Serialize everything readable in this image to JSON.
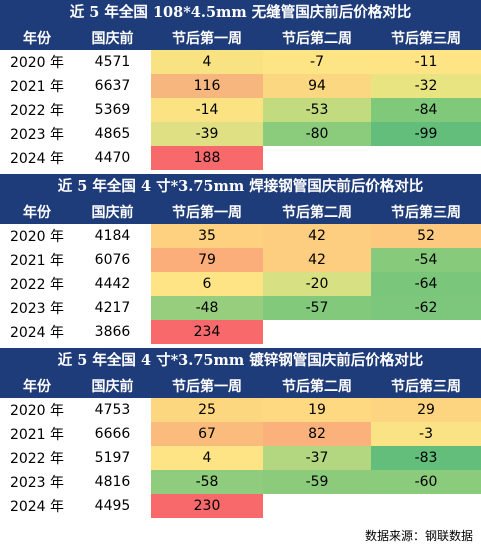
{
  "tables": [
    {
      "title": "近 5 年全国 108*4.5mm 无缝管国庆前后价格对比",
      "headers": [
        "年份",
        "国庆前",
        "节后第一周",
        "节后第二周",
        "节后第三周"
      ],
      "rows": [
        {
          "year": "2020 年",
          "before": "4571",
          "w1": "4",
          "w2": "-7",
          "w3": "-11",
          "colors": [
            "#f9e282",
            "#fde484",
            "#fee485"
          ]
        },
        {
          "year": "2021 年",
          "before": "6637",
          "w1": "116",
          "w2": "94",
          "w3": "-32",
          "colors": [
            "#f7b67d",
            "#fcd781",
            "#e9e482"
          ]
        },
        {
          "year": "2022 年",
          "before": "5369",
          "w1": "-14",
          "w2": "-53",
          "w3": "-84",
          "colors": [
            "#fbe384",
            "#c3db7f",
            "#80c87a"
          ]
        },
        {
          "year": "2023 年",
          "before": "4865",
          "w1": "-39",
          "w2": "-80",
          "w3": "-99",
          "colors": [
            "#dfe083",
            "#8acb7c",
            "#63be7b"
          ]
        },
        {
          "year": "2024 年",
          "before": "4470",
          "w1": "188",
          "w2": "",
          "w3": "",
          "colors": [
            "#f8696b",
            "#ffffff",
            "#ffffff"
          ]
        }
      ]
    },
    {
      "title": "近 5 年全国 4 寸*3.75mm 焊接钢管国庆前后价格对比",
      "headers": [
        "年份",
        "国庆前",
        "节后第一周",
        "节后第二周",
        "节后第三周"
      ],
      "rows": [
        {
          "year": "2020 年",
          "before": "4184",
          "w1": "35",
          "w2": "42",
          "w3": "52",
          "colors": [
            "#fdd180",
            "#fdce7f",
            "#fcc97e"
          ]
        },
        {
          "year": "2021 年",
          "before": "6076",
          "w1": "79",
          "w2": "42",
          "w3": "-54",
          "colors": [
            "#fbae7a",
            "#fdce7f",
            "#87ca7c"
          ]
        },
        {
          "year": "2022 年",
          "before": "4442",
          "w1": "6",
          "w2": "-20",
          "w3": "-64",
          "colors": [
            "#fee485",
            "#d7e083",
            "#7ac67b"
          ]
        },
        {
          "year": "2023 年",
          "before": "4217",
          "w1": "-48",
          "w2": "-57",
          "w3": "-62",
          "colors": [
            "#96ce7d",
            "#83c97c",
            "#7cc77b"
          ]
        },
        {
          "year": "2024 年",
          "before": "3866",
          "w1": "234",
          "w2": "",
          "w3": "",
          "colors": [
            "#f8696b",
            "#ffffff",
            "#ffffff"
          ]
        }
      ]
    },
    {
      "title": "近 5 年全国 4 寸*3.75mm 镀锌钢管国庆前后价格对比",
      "headers": [
        "年份",
        "国庆前",
        "节后第一周",
        "节后第二周",
        "节后第三周"
      ],
      "rows": [
        {
          "year": "2020 年",
          "before": "4753",
          "w1": "25",
          "w2": "19",
          "w3": "29",
          "colors": [
            "#fdd680",
            "#fed981",
            "#fdd480"
          ]
        },
        {
          "year": "2021 年",
          "before": "6666",
          "w1": "67",
          "w2": "82",
          "w3": "-3",
          "colors": [
            "#fbbb7c",
            "#fab17b",
            "#fae385"
          ]
        },
        {
          "year": "2022 年",
          "before": "5197",
          "w1": "4",
          "w2": "-37",
          "w3": "-83",
          "colors": [
            "#fee485",
            "#b3d680",
            "#63be7b"
          ]
        },
        {
          "year": "2023 年",
          "before": "4816",
          "w1": "-58",
          "w2": "-59",
          "w3": "-60",
          "colors": [
            "#8fcc7d",
            "#8dcb7c",
            "#8bcb7c"
          ]
        },
        {
          "year": "2024 年",
          "before": "4495",
          "w1": "230",
          "w2": "",
          "w3": "",
          "colors": [
            "#f8696b",
            "#ffffff",
            "#ffffff"
          ]
        }
      ]
    }
  ],
  "footer": "数据来源：钢联数据"
}
